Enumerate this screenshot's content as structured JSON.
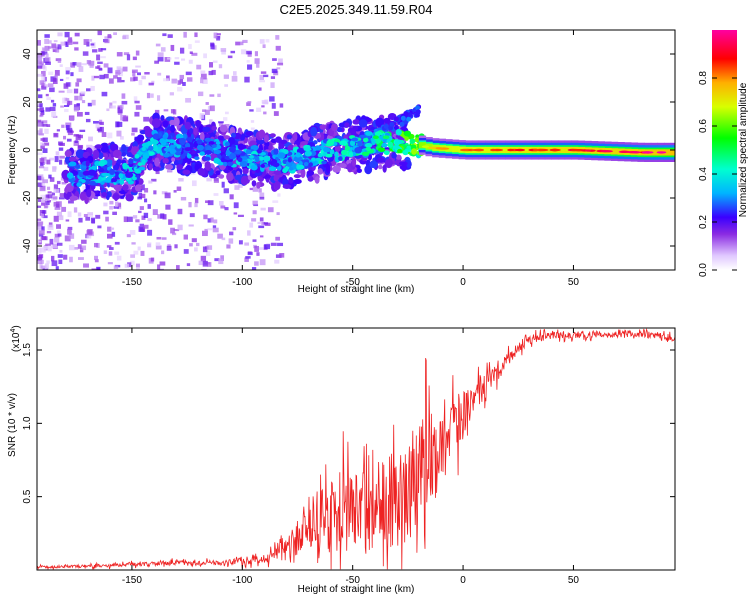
{
  "title": "C2E5.2025.349.11.59.R04",
  "colors": {
    "snr_line": "#ee2222",
    "axis": "#000000"
  },
  "chart_data": [
    {
      "type": "heatmap",
      "title": "C2E5.2025.349.11.59.R04",
      "xlabel": "Height of straight line (km)",
      "ylabel": "Frequency (Hz)",
      "xlim": [
        -193,
        96
      ],
      "ylim": [
        -50,
        50
      ],
      "xticks": [
        -150,
        -100,
        -50,
        0,
        50
      ],
      "yticks": [
        -40,
        -20,
        0,
        20,
        40
      ],
      "xtick_labels": [
        "-150",
        "-100",
        "-50",
        "0",
        "50"
      ],
      "ytick_labels": [
        "-40",
        "-20",
        "0",
        "20",
        "40"
      ],
      "colorbar": {
        "label": "Normalized spectral amplitude",
        "range": [
          0,
          1
        ],
        "ticks": [
          0,
          0.2,
          0.4,
          0.6,
          0.8
        ],
        "tick_labels": [
          "0.0",
          "0.2",
          "0.4",
          "0.6",
          "0.8"
        ],
        "colors": [
          "#ffffff",
          "#e0c8ff",
          "#8a2be2",
          "#3a00ff",
          "#00b4ff",
          "#00ffd0",
          "#00ff00",
          "#d8ff00",
          "#ffb000",
          "#ff0000",
          "#ff00a0"
        ]
      },
      "ridge": {
        "height_km": [
          -175,
          -160,
          -150,
          -140,
          -120,
          -100,
          -80,
          -60,
          -40,
          -25,
          -15,
          0,
          20,
          50,
          80,
          95
        ],
        "frequency_hz": [
          -10,
          -9,
          -9,
          3,
          1,
          -3,
          -5,
          0,
          3,
          3,
          1,
          0,
          0,
          0,
          -1,
          -1
        ],
        "amplitude": [
          0.3,
          0.35,
          0.35,
          0.35,
          0.3,
          0.35,
          0.35,
          0.4,
          0.45,
          0.55,
          0.7,
          0.75,
          0.8,
          0.85,
          0.9,
          0.95
        ]
      }
    },
    {
      "type": "line",
      "xlabel": "Height of straight line (km)",
      "ylabel": "SNR (10 * v/v)",
      "yscale_label": "(x10",
      "yscale_exponent": "4",
      "yscale_suffix": ")",
      "xlim": [
        -193,
        96
      ],
      "ylim": [
        0,
        1.65
      ],
      "xticks": [
        -150,
        -100,
        -50,
        0,
        50
      ],
      "yticks": [
        0.5,
        1.0,
        1.5
      ],
      "xtick_labels": [
        "-150",
        "-100",
        "-50",
        "0",
        "50"
      ],
      "ytick_labels": [
        "0.5",
        "1.0",
        "1.5"
      ],
      "series": [
        {
          "name": "SNR",
          "x": [
            -193,
            -160,
            -130,
            -110,
            -100,
            -90,
            -85,
            -80,
            -75,
            -70,
            -65,
            -60,
            -55,
            -50,
            -45,
            -40,
            -35,
            -30,
            -25,
            -20,
            -15,
            -10,
            -5,
            0,
            5,
            10,
            15,
            20,
            25,
            30,
            40,
            50,
            60,
            70,
            80,
            96
          ],
          "y": [
            0.02,
            0.03,
            0.05,
            0.05,
            0.06,
            0.08,
            0.1,
            0.14,
            0.22,
            0.3,
            0.33,
            0.38,
            0.4,
            0.4,
            0.42,
            0.45,
            0.48,
            0.5,
            0.58,
            0.68,
            0.78,
            0.88,
            0.95,
            1.05,
            1.15,
            1.25,
            1.33,
            1.43,
            1.52,
            1.57,
            1.6,
            1.6,
            1.61,
            1.61,
            1.61,
            1.58
          ],
          "noise_amplitude": [
            0.01,
            0.015,
            0.02,
            0.02,
            0.03,
            0.04,
            0.06,
            0.1,
            0.15,
            0.2,
            0.25,
            0.3,
            0.35,
            0.35,
            0.35,
            0.38,
            0.4,
            0.45,
            0.45,
            0.45,
            0.45,
            0.4,
            0.3,
            0.2,
            0.15,
            0.1,
            0.07,
            0.06,
            0.05,
            0.04,
            0.03,
            0.03,
            0.03,
            0.03,
            0.03,
            0.03
          ]
        }
      ]
    }
  ]
}
